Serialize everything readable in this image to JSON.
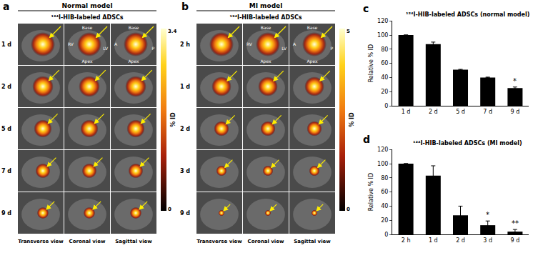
{
  "panels": [
    {
      "letter": "a",
      "header": "Normal model",
      "subtitle": "¹²⁴I-HIB-labeled ADSCs",
      "rows": [
        "1 d",
        "2 d",
        "5 d",
        "7 d",
        "9 d"
      ],
      "columns": [
        "Transverse view",
        "Coronal view",
        "Sagittal view"
      ],
      "first_row_labels": {
        "coronal": {
          "top": "Base",
          "left": "RV",
          "right": "LV",
          "bottom": "Apex"
        },
        "sagittal": {
          "top": "Base",
          "left": "A",
          "right": "P",
          "bottom": "Apex"
        }
      },
      "colorbar": {
        "max": 3.4,
        "min": 0,
        "label": "% ID"
      }
    },
    {
      "letter": "b",
      "header": "MI model",
      "subtitle": "¹²⁴I-HIB-labeled ADSCs",
      "rows": [
        "2 h",
        "1 d",
        "2 d",
        "3 d",
        "9 d"
      ],
      "columns": [
        "Transverse view",
        "Coronal view",
        "Sagittal view"
      ],
      "first_row_labels": {
        "coronal": {
          "top": "Base",
          "left": "RV",
          "right": "LV",
          "bottom": "Apex"
        },
        "sagittal": {
          "top": "Base",
          "left": "A",
          "right": "P",
          "bottom": "Apex"
        }
      },
      "colorbar": {
        "max": 5,
        "min": 0,
        "label": "% ID"
      }
    }
  ],
  "chart_data": [
    {
      "panel": "c",
      "type": "bar",
      "title": "¹²⁴I-HIB-labeled ADSCs (normal model)",
      "categories": [
        "1 d",
        "2 d",
        "5 d",
        "7 d",
        "9 d"
      ],
      "values": [
        100,
        87,
        51,
        40,
        25
      ],
      "errors": [
        0,
        3,
        0.5,
        0.5,
        1.5
      ],
      "color": "#000000",
      "ylabel": "Relative % ID",
      "ylim": [
        0,
        120
      ],
      "yticks": [
        0,
        20,
        40,
        60,
        80,
        100,
        120
      ],
      "annotations": [
        {
          "x": "9 d",
          "text": "*"
        }
      ]
    },
    {
      "panel": "d",
      "type": "bar",
      "title": "¹²⁴I-HIB-labeled ADSCs (MI model)",
      "categories": [
        "2 h",
        "1 d",
        "2 d",
        "3 d",
        "9 d"
      ],
      "values": [
        100,
        83,
        27,
        13,
        4
      ],
      "errors": [
        0,
        14,
        13,
        6,
        3
      ],
      "color": "#000000",
      "ylabel": "Relative % ID",
      "ylim": [
        0,
        120
      ],
      "yticks": [
        0,
        20,
        40,
        60,
        80,
        100,
        120
      ],
      "annotations": [
        {
          "x": "3 d",
          "text": "*"
        },
        {
          "x": "9 d",
          "text": "**"
        }
      ]
    }
  ]
}
